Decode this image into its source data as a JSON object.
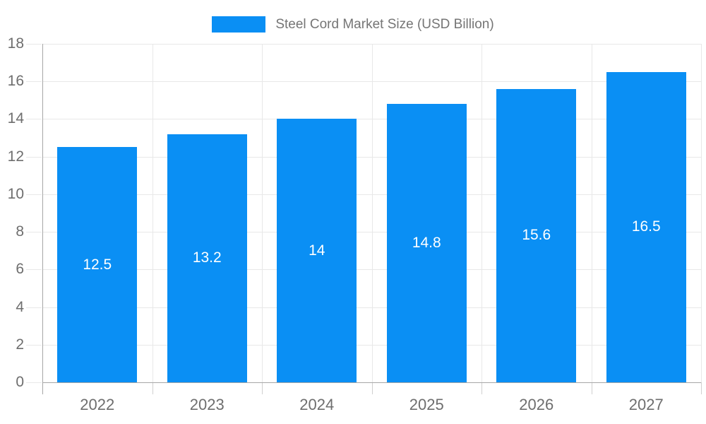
{
  "legend": {
    "label": "Steel Cord Market Size (USD Billion)"
  },
  "chart_data": {
    "type": "bar",
    "title": "Steel Cord Market Size (USD Billion)",
    "categories": [
      "2022",
      "2023",
      "2024",
      "2025",
      "2026",
      "2027"
    ],
    "values": [
      12.5,
      13.2,
      14,
      14.8,
      15.6,
      16.5
    ],
    "value_labels": [
      "12.5",
      "13.2",
      "14",
      "14.8",
      "15.6",
      "16.5"
    ],
    "xlabel": "",
    "ylabel": "",
    "ylim": [
      0,
      18
    ],
    "ytick_step": 2,
    "yticks": [
      0,
      2,
      4,
      6,
      8,
      10,
      12,
      14,
      16,
      18
    ],
    "grid": true,
    "legend_position": "top",
    "colors": {
      "bar": "#0a8ff4",
      "bar_label": "#ffffff",
      "axis_text": "#6e6e6e",
      "legend_text": "#757575",
      "axis_line": "#a6a6a6",
      "gridline": "#e8e8e8",
      "outer_tick": "#d0d0d0",
      "background": "#ffffff"
    }
  }
}
